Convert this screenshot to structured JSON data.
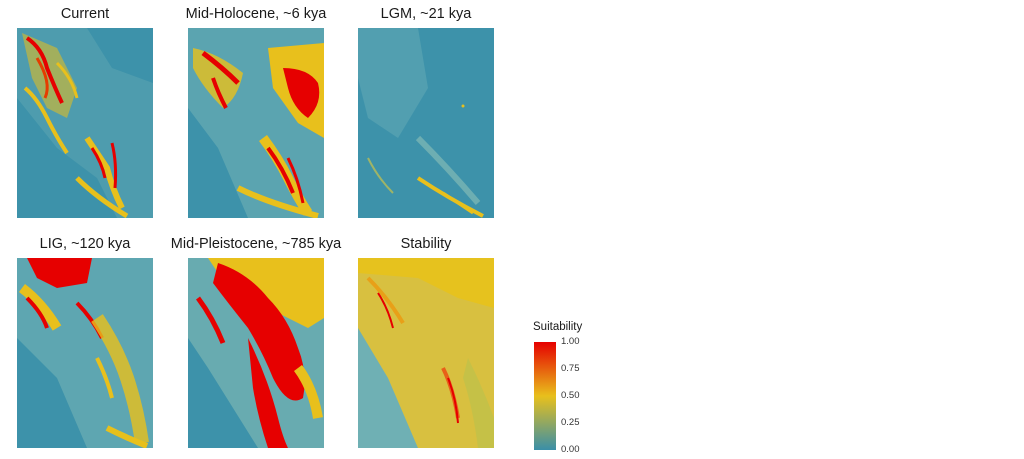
{
  "panels": [
    {
      "id": "current",
      "title": "Current"
    },
    {
      "id": "mid-holocene",
      "title": "Mid-Holocene, ~6 kya"
    },
    {
      "id": "lgm",
      "title": "LGM, ~21 kya"
    },
    {
      "id": "lig",
      "title": "LIG, ~120 kya"
    },
    {
      "id": "mid-pleistocene",
      "title": "Mid-Pleistocene, ~785 kya"
    },
    {
      "id": "stability",
      "title": "Stability"
    }
  ],
  "legend": {
    "title": "Suitability",
    "ticks": [
      "1.00",
      "0.75",
      "0.50",
      "0.25",
      "0.00"
    ],
    "range": [
      0,
      1
    ],
    "colors": [
      "#3a8fa8",
      "#e8c01c",
      "#e60000"
    ]
  }
}
